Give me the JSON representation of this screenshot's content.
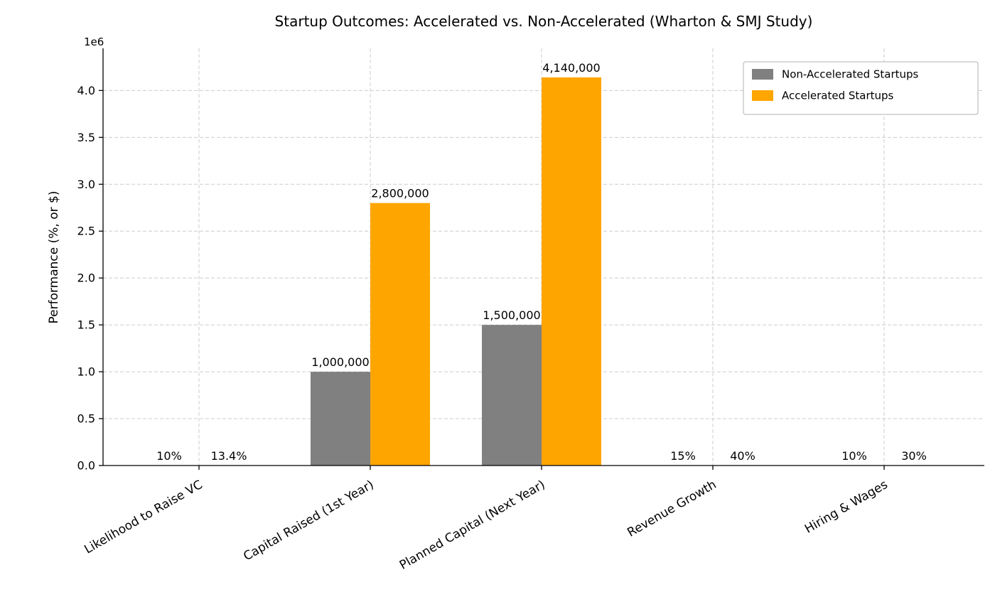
{
  "chart_data": {
    "type": "bar",
    "title": "Startup Outcomes: Accelerated vs. Non-Accelerated (Wharton & SMJ Study)",
    "ylabel": "Performance (%, or $)",
    "xlabel": "",
    "offset_text": "1e6",
    "categories": [
      "Likelihood to Raise VC",
      "Capital Raised (1st Year)",
      "Planned Capital (Next Year)",
      "Revenue Growth",
      "Hiring & Wages"
    ],
    "series": [
      {
        "name": "Non-Accelerated Startups",
        "color": "#808080",
        "values": [
          10,
          1000000,
          1500000,
          15,
          10
        ],
        "labels": [
          "10%",
          "1,000,000",
          "1,500,000",
          "15%",
          "10%"
        ]
      },
      {
        "name": "Accelerated Startups",
        "color": "#FFA500",
        "values": [
          13.4,
          2800000,
          4140000,
          40,
          30
        ],
        "labels": [
          "13.4%",
          "2,800,000",
          "4,140,000",
          "40%",
          "30%"
        ]
      }
    ],
    "ylim": [
      0,
      4450000
    ],
    "yticks": [
      0,
      500000,
      1000000,
      1500000,
      2000000,
      2500000,
      3000000,
      3500000,
      4000000
    ],
    "ytick_labels": [
      "0.0",
      "0.5",
      "1.0",
      "1.5",
      "2.0",
      "2.5",
      "3.0",
      "3.5",
      "4.0"
    ],
    "grid": true,
    "grid_color": "#cccccc",
    "axis_color": "#000000",
    "text_color": "#000000",
    "background_color": "#ffffff",
    "legend_position": "upper right"
  }
}
